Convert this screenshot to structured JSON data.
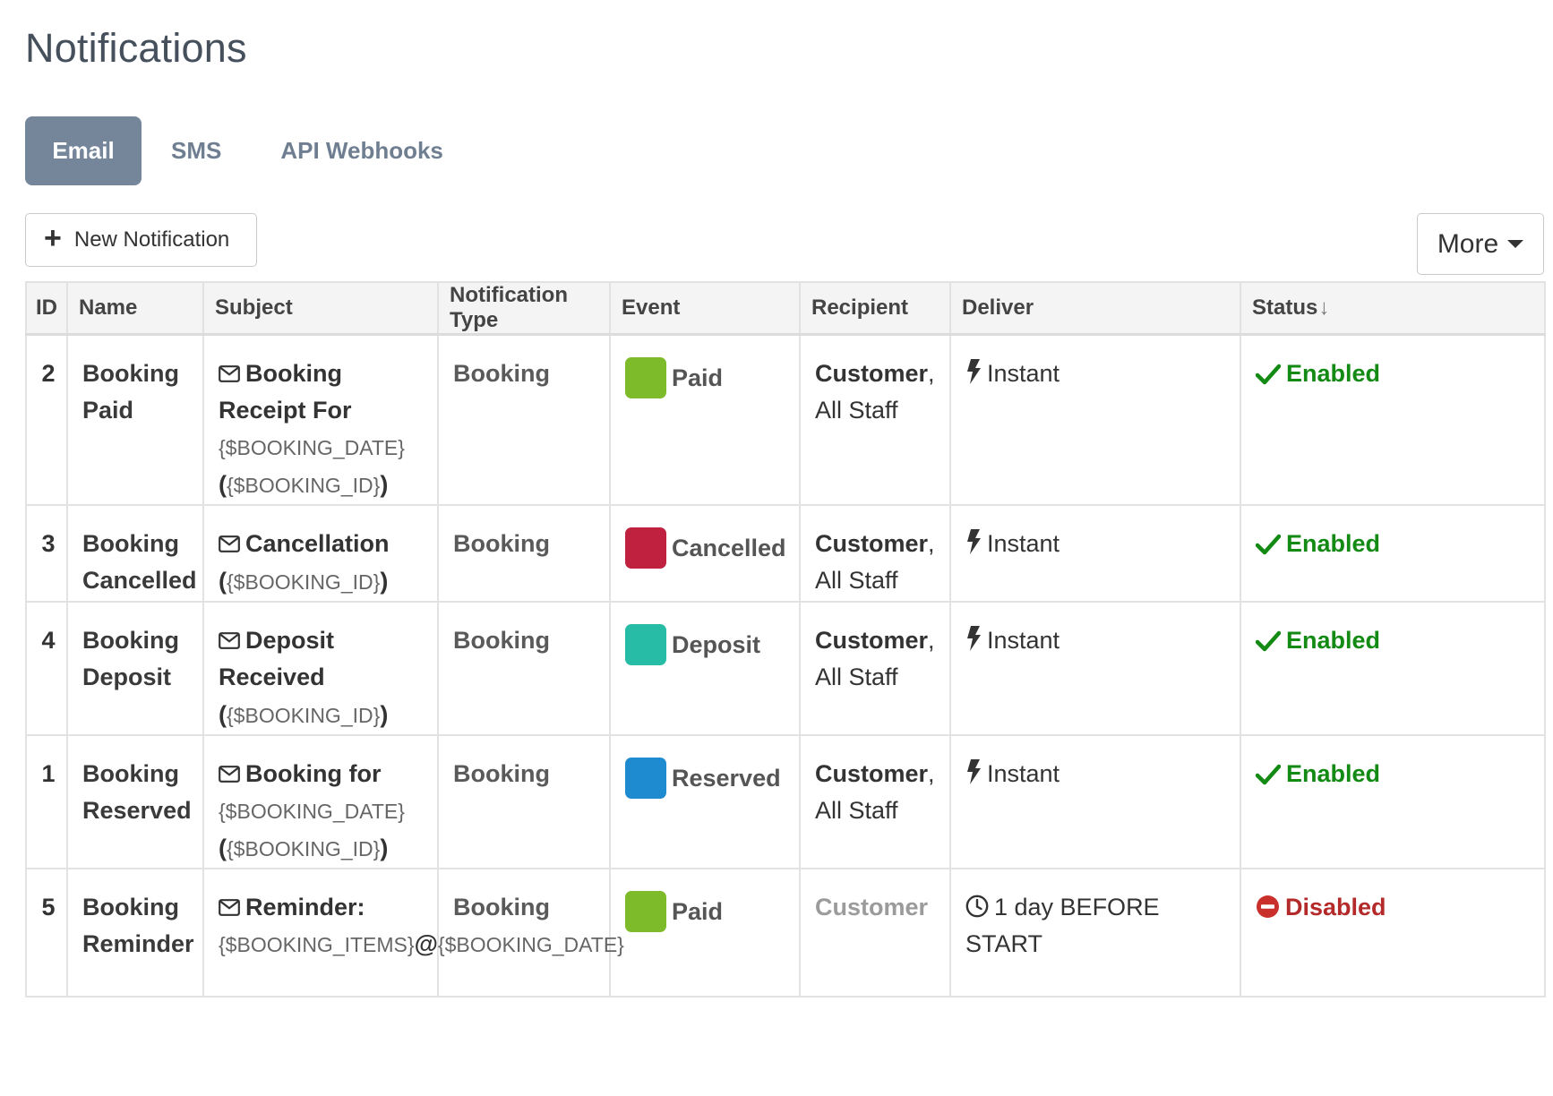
{
  "page": {
    "title": "Notifications"
  },
  "tabs": [
    {
      "label": "Email",
      "active": true
    },
    {
      "label": "SMS",
      "active": false
    },
    {
      "label": "API Webhooks",
      "active": false
    }
  ],
  "toolbar": {
    "new_label": "New Notification",
    "more_label": "More"
  },
  "table": {
    "headers": [
      "ID",
      "Name",
      "Subject",
      "Notification Type",
      "Event",
      "Recipient",
      "Deliver",
      "Status"
    ],
    "status_sort_icon": "↓",
    "rows": [
      {
        "id": "2",
        "name": "Booking Paid",
        "subject": {
          "a": "Booking Receipt For",
          "b": "{$BOOKING_DATE}",
          "c": "(",
          "d": "{$BOOKING_ID}",
          "e": ")"
        },
        "type": "Booking",
        "event": "Paid",
        "event_color": "#7dbb2a",
        "recipient_main": "Customer",
        "recipient_sep": ",",
        "recipient_rest": "All Staff",
        "deliver_icon": "bolt-icon",
        "deliver": "Instant",
        "status": "Enabled",
        "status_kind": "on"
      },
      {
        "id": "3",
        "name": "Booking Cancelled",
        "subject": {
          "a": "Cancellation",
          "b": "",
          "c": "(",
          "d": "{$BOOKING_ID}",
          "e": ")"
        },
        "type": "Booking",
        "event": "Cancelled",
        "event_color": "#c0213f",
        "recipient_main": "Customer",
        "recipient_sep": ",",
        "recipient_rest": "All Staff",
        "deliver_icon": "bolt-icon",
        "deliver": "Instant",
        "status": "Enabled",
        "status_kind": "on"
      },
      {
        "id": "4",
        "name": "Booking Deposit",
        "subject": {
          "a": "Deposit Received",
          "b": "",
          "c": "(",
          "d": "{$BOOKING_ID}",
          "e": ")"
        },
        "type": "Booking",
        "event": "Deposit",
        "event_color": "#26bca5",
        "recipient_main": "Customer",
        "recipient_sep": ",",
        "recipient_rest": "All Staff",
        "deliver_icon": "bolt-icon",
        "deliver": "Instant",
        "status": "Enabled",
        "status_kind": "on"
      },
      {
        "id": "1",
        "name": "Booking Reserved",
        "subject": {
          "a": "Booking for",
          "b": "{$BOOKING_DATE}",
          "c": "(",
          "d": "{$BOOKING_ID}",
          "e": ")"
        },
        "type": "Booking",
        "event": "Reserved",
        "event_color": "#1e8bd0",
        "recipient_main": "Customer",
        "recipient_sep": ",",
        "recipient_rest": "All Staff",
        "deliver_icon": "bolt-icon",
        "deliver": "Instant",
        "status": "Enabled",
        "status_kind": "on"
      },
      {
        "id": "5",
        "name": "Booking Reminder",
        "subject": {
          "a": "Reminder:",
          "b": "{$BOOKING_ITEMS}",
          "c": "@",
          "d": "{$BOOKING_DATE}",
          "e": ""
        },
        "type": "Booking",
        "event": "Paid",
        "event_color": "#7dbb2a",
        "recipient_main": "Customer",
        "recipient_sep": "",
        "recipient_rest": "",
        "deliver_icon": "clock-icon",
        "deliver": "1 day BEFORE START",
        "status": "Disabled",
        "status_kind": "off"
      }
    ]
  },
  "colors": {
    "enabled": "#138a13",
    "disabled": "#b42a2a",
    "tab_active": "#75859a"
  }
}
